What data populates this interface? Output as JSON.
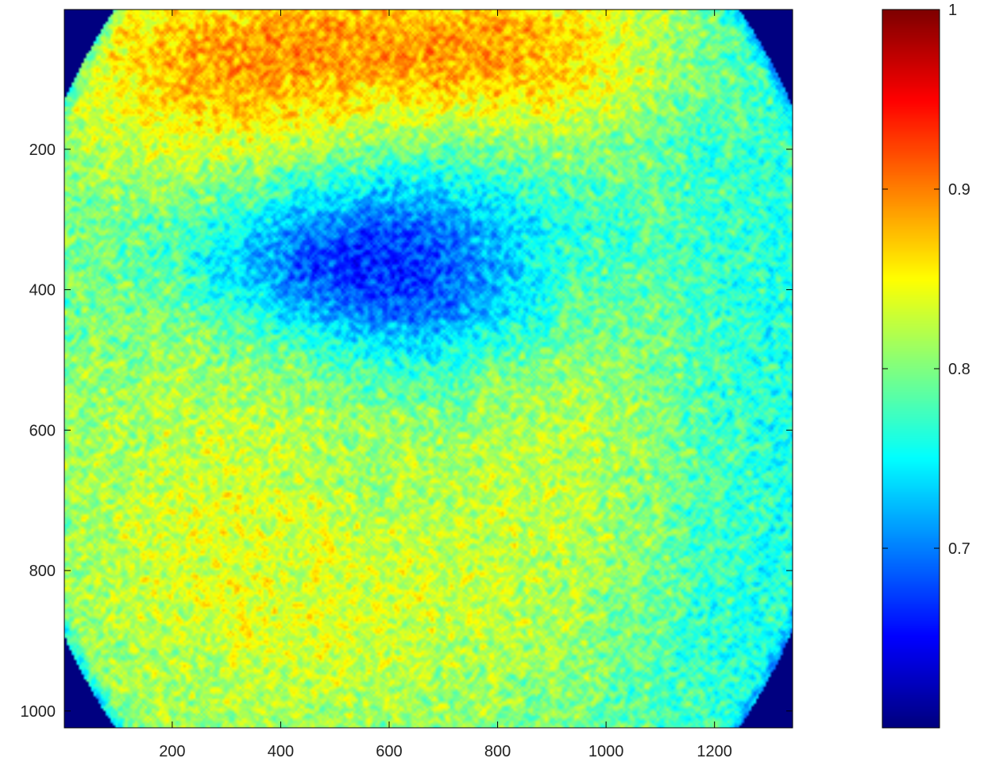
{
  "chart_data": {
    "type": "heatmap",
    "title": "",
    "xlabel": "",
    "ylabel": "",
    "xlim": [
      1,
      1344
    ],
    "ylim": [
      1024,
      1
    ],
    "y_axis_direction": "reversed",
    "x_ticks": [
      "200",
      "400",
      "600",
      "800",
      "1000",
      "1200"
    ],
    "x_tick_values": [
      200,
      400,
      600,
      800,
      1000,
      1200
    ],
    "y_ticks": [
      "200",
      "400",
      "600",
      "800",
      "1000"
    ],
    "y_tick_values": [
      200,
      400,
      600,
      800,
      1000
    ],
    "grid": false,
    "colormap": "jet",
    "colorbar": {
      "range": [
        0.6,
        1.0
      ],
      "ticks": [
        "0.7",
        "0.8",
        "0.9",
        "1"
      ],
      "tick_values": [
        0.7,
        0.8,
        0.9,
        1.0
      ],
      "placement": "right"
    },
    "features": {
      "circular_aperture": {
        "center_x": 670,
        "center_y": 512,
        "radius_px": 770,
        "outside_value": 0.6
      },
      "background_mean": 0.79,
      "noise_amplitude": 0.05,
      "regions": [
        {
          "label": "central low-value region",
          "x_range": [
            300,
            900
          ],
          "y_range": [
            220,
            500
          ],
          "approx_value": 0.7
        },
        {
          "label": "top high-value region",
          "x_range": [
            150,
            1000
          ],
          "y_range": [
            1,
            200
          ],
          "approx_value": 0.88
        },
        {
          "label": "lower high-value regions",
          "x_range": [
            100,
            1100
          ],
          "y_range": [
            500,
            950
          ],
          "approx_value": 0.83
        }
      ]
    }
  }
}
